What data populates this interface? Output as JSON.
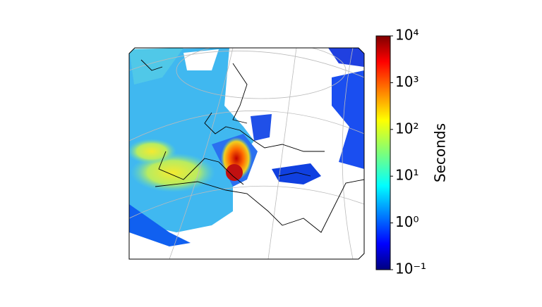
{
  "colorbar": {
    "label": "Seconds",
    "scale": "log",
    "lim": [
      0.1,
      10000
    ],
    "ticks": [
      {
        "value": 0.1,
        "label": "10⁻¹"
      },
      {
        "value": 1,
        "label": "10⁰"
      },
      {
        "value": 10,
        "label": "10¹"
      },
      {
        "value": 100,
        "label": "10²"
      },
      {
        "value": 1000,
        "label": "10³"
      },
      {
        "value": 10000,
        "label": "10⁴"
      }
    ]
  }
}
